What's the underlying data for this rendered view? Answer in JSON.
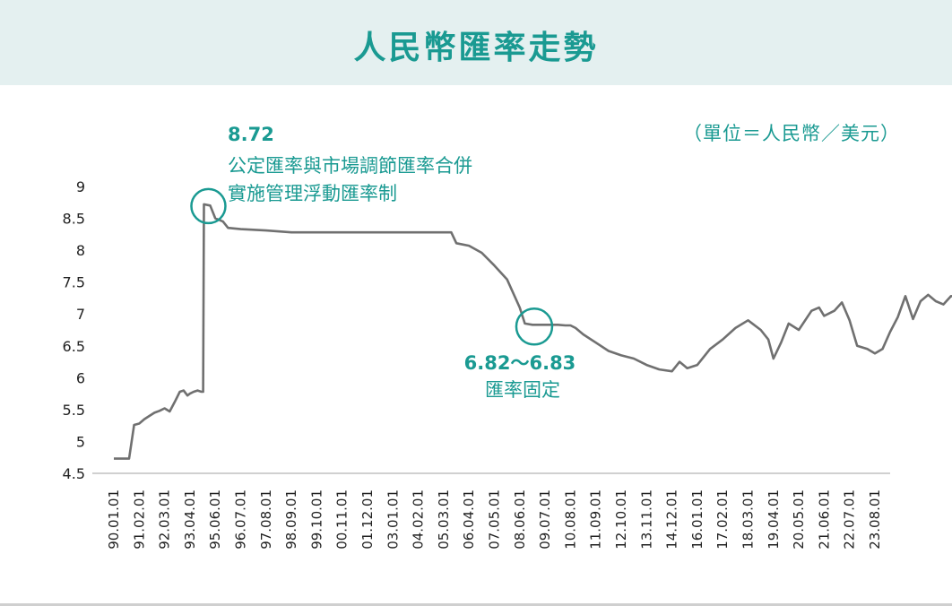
{
  "title": "人民幣匯率走勢",
  "unit_label": "（單位＝人民幣／美元）",
  "colors": {
    "accent": "#1a9a92",
    "line": "#707070",
    "header_bg": "#e4f0f0"
  },
  "chart_data": {
    "type": "line",
    "title": "人民幣匯率走勢",
    "xlabel": "",
    "ylabel": "",
    "ylim": [
      4.5,
      9
    ],
    "yticks": [
      "9",
      "8.5",
      "8",
      "7.5",
      "7",
      "6.5",
      "6",
      "5.5",
      "5",
      "4.5"
    ],
    "x_tick_labels": [
      "90.01.01",
      "91.02.01",
      "92.03.01",
      "93.04.01",
      "95.06.01",
      "96.07.01",
      "97.08.01",
      "98.09.01",
      "99.10.01",
      "00.11.01",
      "01.12.01",
      "03.01.01",
      "04.02.01",
      "05.03.01",
      "06.04.01",
      "07.05.01",
      "08.06.01",
      "09.07.01",
      "10.08.01",
      "11.09.01",
      "12.10.01",
      "13.11.01",
      "14.12.01",
      "16.01.01",
      "17.02.01",
      "18.03.01",
      "19.04.01",
      "20.05.01",
      "21.06.01",
      "22.07.01",
      "23.08.01"
    ],
    "series": [
      {
        "values": [
          [
            0.0,
            4.73
          ],
          [
            0.6,
            4.73
          ],
          [
            0.8,
            5.26
          ],
          [
            1.0,
            5.28
          ],
          [
            1.2,
            5.35
          ],
          [
            1.4,
            5.4
          ],
          [
            1.6,
            5.45
          ],
          [
            1.8,
            5.48
          ],
          [
            2.0,
            5.52
          ],
          [
            2.2,
            5.47
          ],
          [
            2.4,
            5.62
          ],
          [
            2.6,
            5.78
          ],
          [
            2.75,
            5.8
          ],
          [
            2.9,
            5.72
          ],
          [
            3.0,
            5.75
          ],
          [
            3.15,
            5.78
          ],
          [
            3.3,
            5.8
          ],
          [
            3.45,
            5.78
          ],
          [
            3.52,
            5.78
          ],
          [
            3.55,
            8.72
          ],
          [
            3.8,
            8.7
          ],
          [
            4.0,
            8.5
          ],
          [
            4.3,
            8.45
          ],
          [
            4.5,
            8.35
          ],
          [
            5.0,
            8.33
          ],
          [
            6.0,
            8.31
          ],
          [
            7.0,
            8.28
          ],
          [
            8.0,
            8.28
          ],
          [
            9.0,
            8.28
          ],
          [
            10.0,
            8.28
          ],
          [
            11.0,
            8.28
          ],
          [
            12.0,
            8.28
          ],
          [
            13.0,
            8.28
          ],
          [
            13.3,
            8.28
          ],
          [
            13.5,
            8.11
          ],
          [
            14.0,
            8.07
          ],
          [
            14.5,
            7.96
          ],
          [
            15.0,
            7.76
          ],
          [
            15.5,
            7.54
          ],
          [
            16.0,
            7.1
          ],
          [
            16.2,
            6.85
          ],
          [
            16.5,
            6.83
          ],
          [
            17.0,
            6.83
          ],
          [
            17.5,
            6.83
          ],
          [
            17.8,
            6.82
          ],
          [
            18.0,
            6.82
          ],
          [
            18.2,
            6.78
          ],
          [
            18.5,
            6.68
          ],
          [
            19.0,
            6.55
          ],
          [
            19.5,
            6.42
          ],
          [
            20.0,
            6.35
          ],
          [
            20.5,
            6.3
          ],
          [
            21.0,
            6.2
          ],
          [
            21.5,
            6.13
          ],
          [
            22.0,
            6.1
          ],
          [
            22.3,
            6.25
          ],
          [
            22.6,
            6.15
          ],
          [
            23.0,
            6.2
          ],
          [
            23.5,
            6.45
          ],
          [
            24.0,
            6.6
          ],
          [
            24.5,
            6.78
          ],
          [
            25.0,
            6.9
          ],
          [
            25.5,
            6.75
          ],
          [
            25.8,
            6.6
          ],
          [
            26.0,
            6.3
          ],
          [
            26.3,
            6.55
          ],
          [
            26.6,
            6.85
          ],
          [
            27.0,
            6.75
          ],
          [
            27.5,
            7.05
          ],
          [
            27.8,
            7.1
          ],
          [
            28.0,
            6.97
          ],
          [
            28.4,
            7.05
          ],
          [
            28.7,
            7.18
          ],
          [
            29.0,
            6.9
          ],
          [
            29.3,
            6.5
          ],
          [
            29.7,
            6.45
          ],
          [
            30.0,
            6.38
          ],
          [
            30.3,
            6.45
          ],
          [
            30.6,
            6.72
          ],
          [
            30.9,
            6.95
          ],
          [
            31.2,
            7.28
          ],
          [
            31.5,
            6.92
          ],
          [
            31.8,
            7.2
          ],
          [
            32.1,
            7.3
          ],
          [
            32.4,
            7.2
          ],
          [
            32.7,
            7.15
          ],
          [
            33.0,
            7.28
          ],
          [
            33.3,
            7.27
          ]
        ]
      }
    ],
    "annotations": [
      {
        "x": 3.55,
        "y": 8.72,
        "value": "8.72",
        "lines": [
          "公定匯率與市場調節匯率合併",
          "實施管理浮動匯率制"
        ]
      },
      {
        "x": 16.5,
        "y": 6.83,
        "value": "6.82～6.83",
        "lines": [
          "匯率固定"
        ]
      }
    ]
  }
}
